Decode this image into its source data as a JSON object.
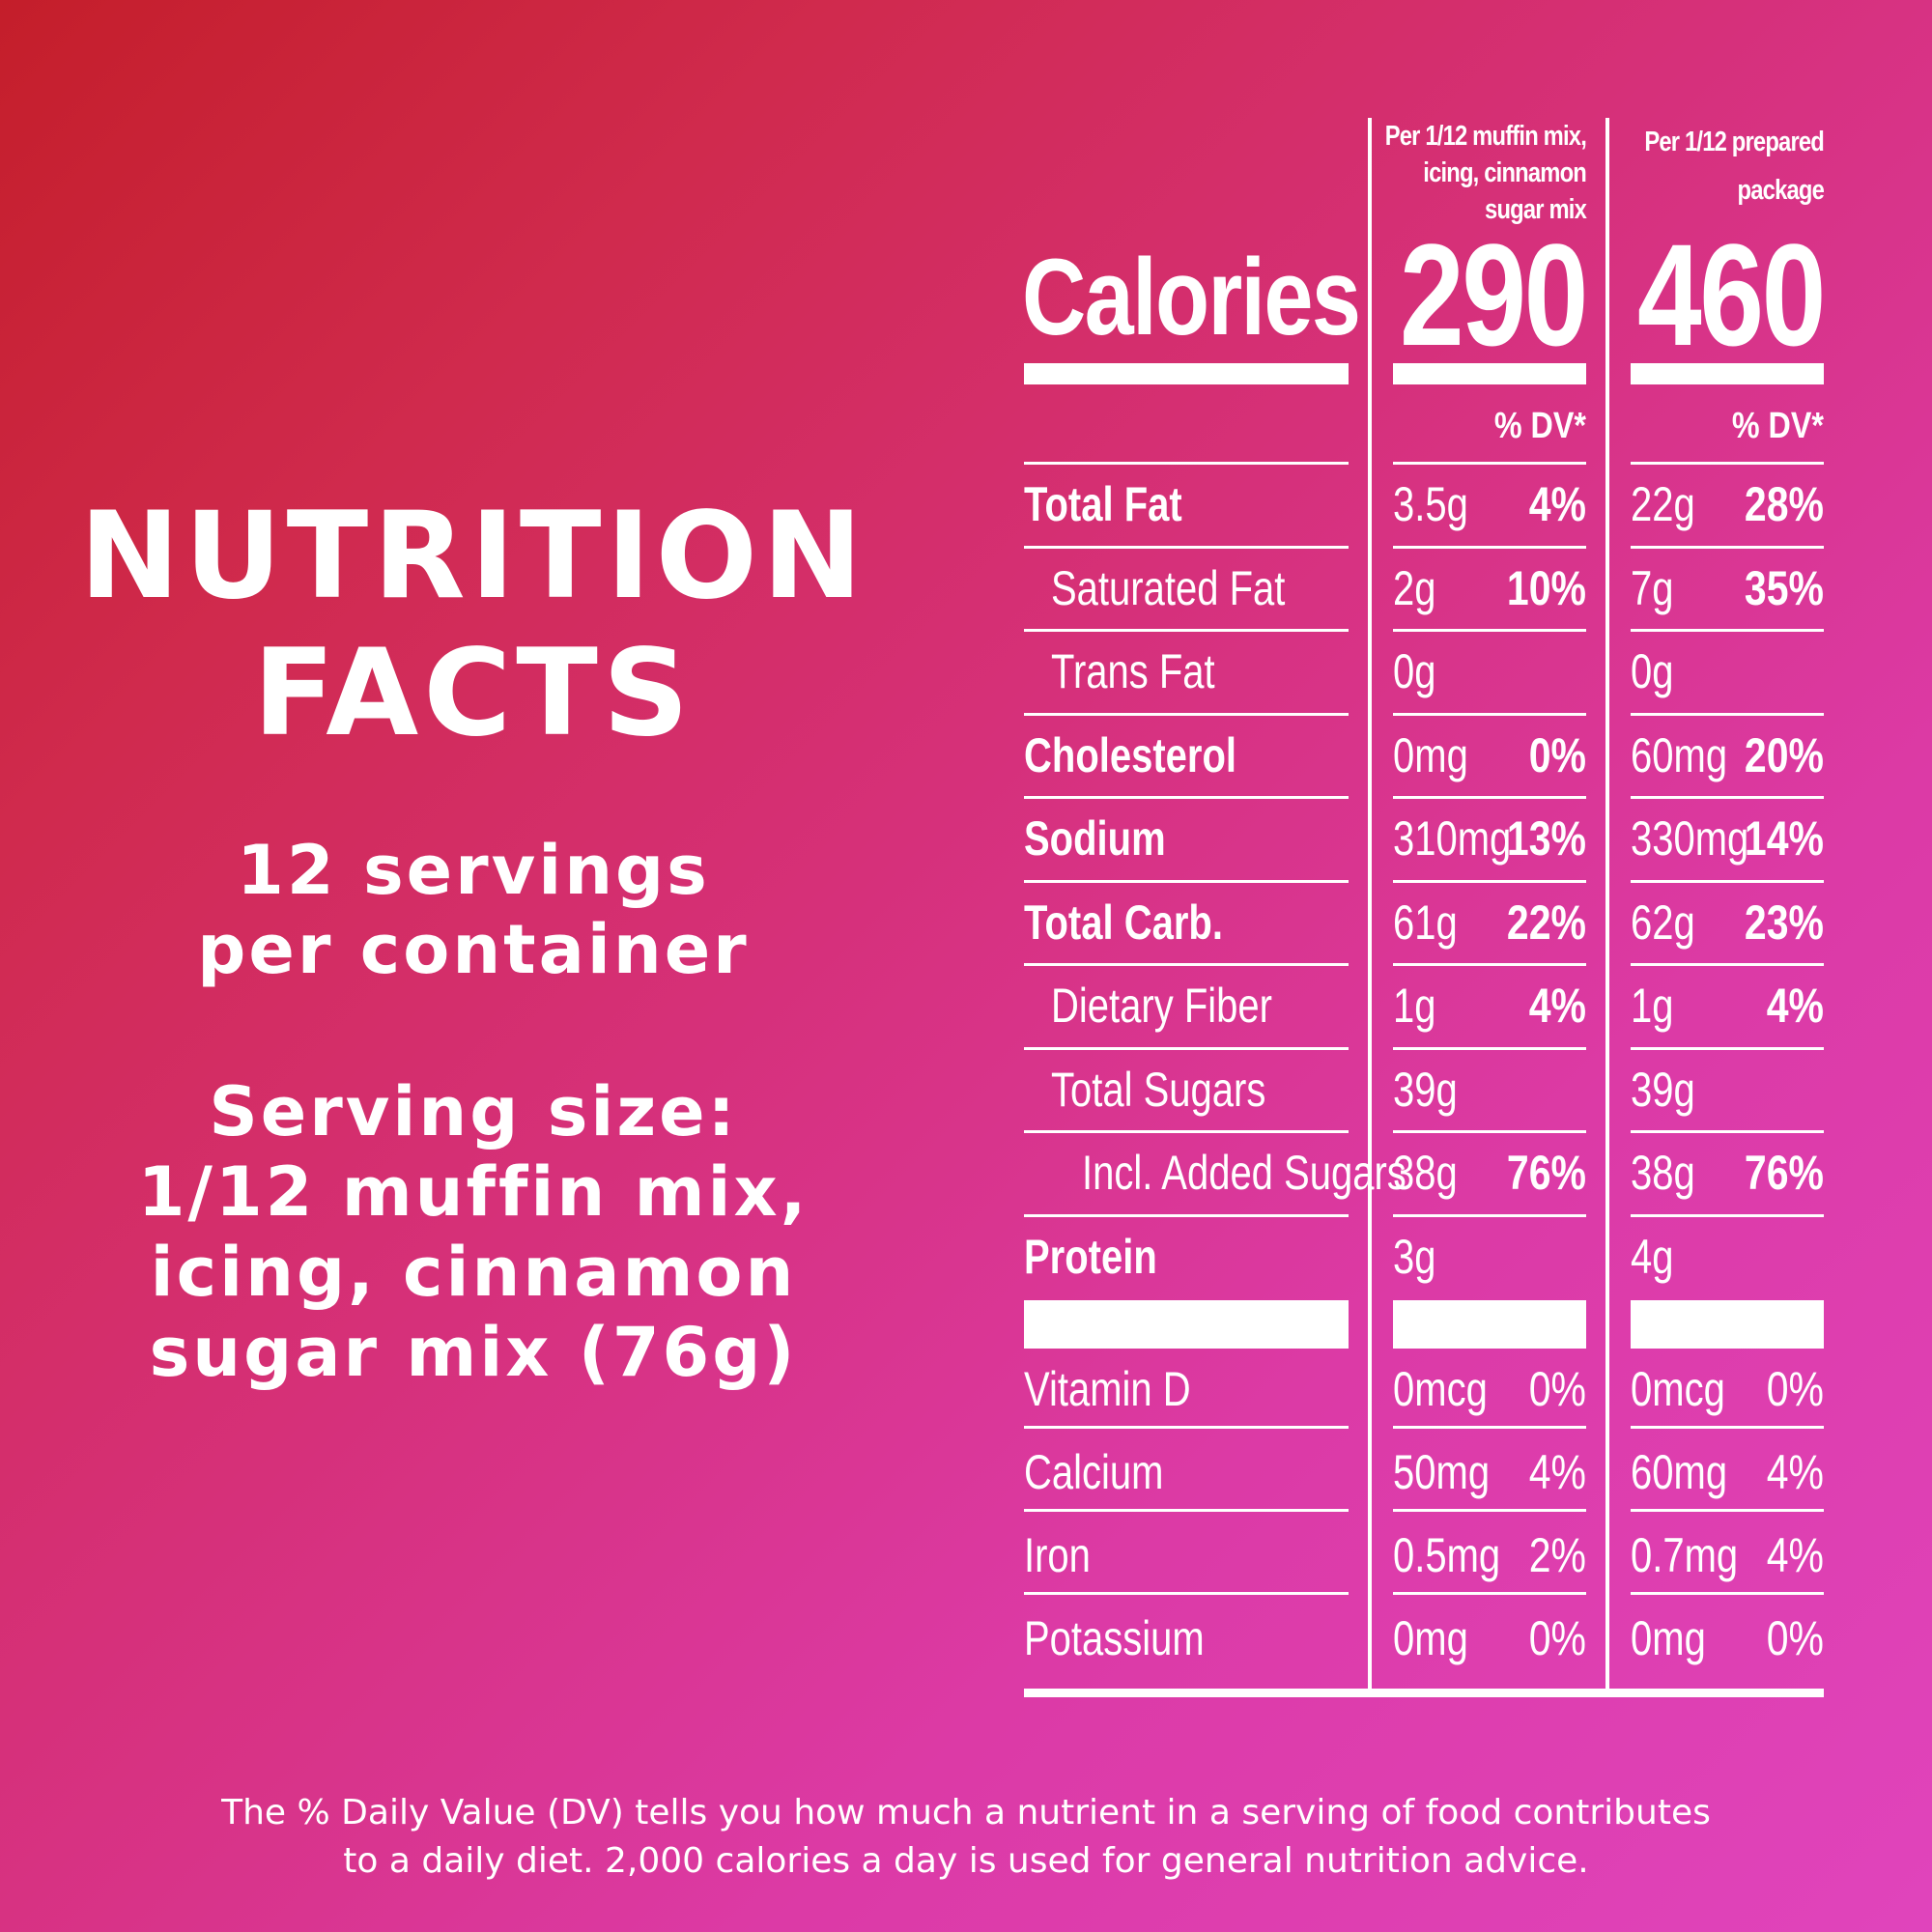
{
  "left": {
    "title_line1": "NUTRITION",
    "title_line2": "FACTS",
    "servings_line1": "12 servings",
    "servings_line2": "per container",
    "serving_line1": "Serving size:",
    "serving_line2": "1/12 muffin mix,",
    "serving_line3": "icing, cinnamon",
    "serving_line4": "sugar mix (76g)"
  },
  "columns": {
    "col1_head": [
      "Per 1/12 muffin mix,",
      "icing, cinnamon",
      "sugar mix"
    ],
    "col2_head": [
      "Per 1/12 prepared",
      "package"
    ],
    "dv_label": "% DV*"
  },
  "calories": {
    "label": "Calories",
    "col1": "290",
    "col2": "460"
  },
  "nutrients": [
    {
      "label": "Total Fat",
      "bold": true,
      "indent": 0,
      "a1": "3.5g",
      "p1": "4%",
      "a2": "22g",
      "p2": "28%"
    },
    {
      "label": "Saturated Fat",
      "bold": false,
      "indent": 1,
      "a1": "2g",
      "p1": "10%",
      "a2": "7g",
      "p2": "35%"
    },
    {
      "label": "Trans Fat",
      "bold": false,
      "indent": 1,
      "a1": "0g",
      "p1": "",
      "a2": "0g",
      "p2": ""
    },
    {
      "label": "Cholesterol",
      "bold": true,
      "indent": 0,
      "a1": "0mg",
      "p1": "0%",
      "a2": "60mg",
      "p2": "20%"
    },
    {
      "label": "Sodium",
      "bold": true,
      "indent": 0,
      "a1": "310mg",
      "p1": "13%",
      "a2": "330mg",
      "p2": "14%"
    },
    {
      "label": "Total Carb.",
      "bold": true,
      "indent": 0,
      "a1": "61g",
      "p1": "22%",
      "a2": "62g",
      "p2": "23%"
    },
    {
      "label": "Dietary Fiber",
      "bold": false,
      "indent": 1,
      "a1": "1g",
      "p1": "4%",
      "a2": "1g",
      "p2": "4%"
    },
    {
      "label": "Total Sugars",
      "bold": false,
      "indent": 1,
      "a1": "39g",
      "p1": "",
      "a2": "39g",
      "p2": ""
    },
    {
      "label": "Incl. Added Sugars",
      "bold": false,
      "indent": 2,
      "a1": "38g",
      "p1": "76%",
      "a2": "38g",
      "p2": "76%"
    },
    {
      "label": "Protein",
      "bold": true,
      "indent": 0,
      "a1": "3g",
      "p1": "",
      "a2": "4g",
      "p2": ""
    }
  ],
  "vitamins": [
    {
      "label": "Vitamin D",
      "a1": "0mcg",
      "p1": "0%",
      "a2": "0mcg",
      "p2": "0%"
    },
    {
      "label": "Calcium",
      "a1": "50mg",
      "p1": "4%",
      "a2": "60mg",
      "p2": "4%"
    },
    {
      "label": "Iron",
      "a1": "0.5mg",
      "p1": "2%",
      "a2": "0.7mg",
      "p2": "4%"
    },
    {
      "label": "Potassium",
      "a1": "0mg",
      "p1": "0%",
      "a2": "0mg",
      "p2": "0%"
    }
  ],
  "footnote_line1": "The % Daily Value (DV) tells you how much a nutrient in a serving of food contributes",
  "footnote_line2": "to a daily diet. 2,000 calories a day is used for general nutrition advice."
}
